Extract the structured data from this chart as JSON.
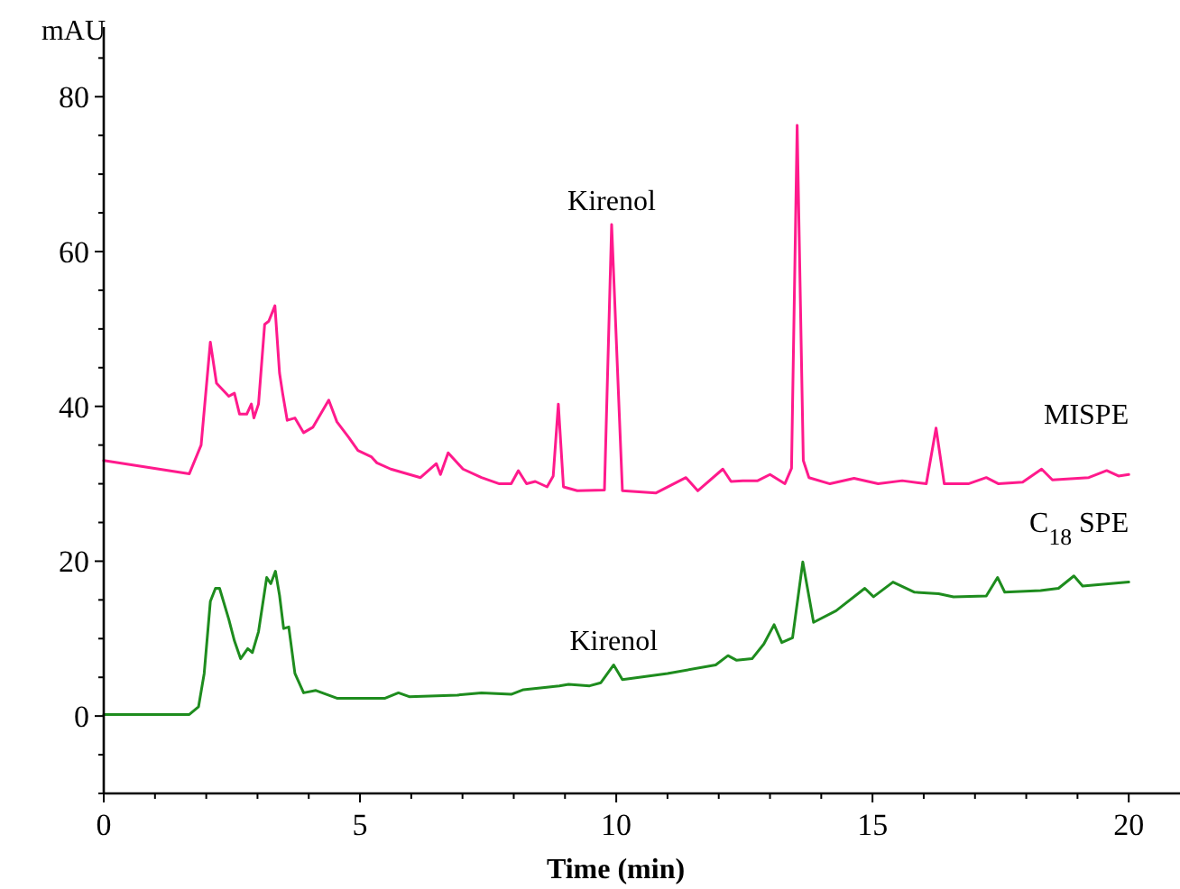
{
  "chart_data": {
    "type": "line",
    "xlabel": "Time (min)",
    "ylabel": "mAU",
    "xlim": [
      0,
      21
    ],
    "ylim": [
      -10,
      89
    ],
    "xticks": [
      0,
      {
        "value": 1,
        "label": null
      },
      {
        "value": 2,
        "label": null
      },
      {
        "value": 3,
        "label": null
      },
      {
        "value": 4,
        "label": null
      },
      5,
      {
        "value": 6,
        "label": null
      },
      {
        "value": 7,
        "label": null
      },
      {
        "value": 8,
        "label": null
      },
      {
        "value": 9,
        "label": null
      },
      10,
      {
        "value": 11,
        "label": null
      },
      {
        "value": 12,
        "label": null
      },
      {
        "value": 13,
        "label": null
      },
      {
        "value": 14,
        "label": null
      },
      15,
      {
        "value": 16,
        "label": null
      },
      {
        "value": 17,
        "label": null
      },
      {
        "value": 18,
        "label": null
      },
      {
        "value": 19,
        "label": null
      },
      20
    ],
    "yticks": [
      {
        "value": -10,
        "label": null
      },
      {
        "value": -5,
        "label": null
      },
      0,
      {
        "value": 5,
        "label": null
      },
      {
        "value": 10,
        "label": null
      },
      {
        "value": 15,
        "label": null
      },
      20,
      {
        "value": 25,
        "label": null
      },
      {
        "value": 30,
        "label": null
      },
      {
        "value": 35,
        "label": null
      },
      40,
      {
        "value": 45,
        "label": null
      },
      {
        "value": 50,
        "label": null
      },
      {
        "value": 55,
        "label": null
      },
      60,
      {
        "value": 65,
        "label": null
      },
      {
        "value": 70,
        "label": null
      },
      {
        "value": 75,
        "label": null
      },
      80,
      {
        "value": 85,
        "label": null
      }
    ],
    "grid": false,
    "marker": "none",
    "line_style": "solid",
    "series": [
      {
        "name": "MISPE",
        "color": "#ff1a8c",
        "x": [
          0,
          1.67,
          1.9,
          2.08,
          2.2,
          2.44,
          2.55,
          2.65,
          2.79,
          2.88,
          2.93,
          3.02,
          3.14,
          3.22,
          3.34,
          3.43,
          3.49,
          3.58,
          3.73,
          3.9,
          4.08,
          4.39,
          4.55,
          4.78,
          4.96,
          5.22,
          5.33,
          5.6,
          6.18,
          6.49,
          6.57,
          6.72,
          7.01,
          7.37,
          7.72,
          7.95,
          8.09,
          8.25,
          8.42,
          8.65,
          8.77,
          8.87,
          8.97,
          9.24,
          9.77,
          9.91,
          10.12,
          10.77,
          11.36,
          11.59,
          12.08,
          12.24,
          12.47,
          12.76,
          13.0,
          13.29,
          13.42,
          13.53,
          13.65,
          13.76,
          14.17,
          14.64,
          15.11,
          15.58,
          16.05,
          16.24,
          16.4,
          16.87,
          17.22,
          17.46,
          17.93,
          18.3,
          18.51,
          19.22,
          19.57,
          19.8,
          20.0
        ],
        "values": [
          33,
          31.3,
          35,
          48.3,
          43,
          41.3,
          41.7,
          39,
          39,
          40.3,
          38.5,
          40.3,
          50.6,
          51,
          53,
          44.3,
          41.7,
          38.2,
          38.5,
          36.6,
          37.3,
          40.8,
          38,
          36,
          34.3,
          33.5,
          32.7,
          31.9,
          30.8,
          32.6,
          31.2,
          34,
          31.9,
          30.8,
          30,
          30,
          31.7,
          30,
          30.3,
          29.6,
          31,
          40.3,
          29.6,
          29.1,
          29.2,
          63.5,
          29.1,
          28.8,
          30.8,
          29.1,
          31.9,
          30.3,
          30.4,
          30.4,
          31.2,
          30,
          32,
          76.3,
          33,
          30.8,
          30,
          30.7,
          30,
          30.4,
          30,
          37.2,
          30,
          30,
          30.8,
          30,
          30.2,
          31.9,
          30.5,
          30.8,
          31.7,
          31,
          31.2
        ]
      },
      {
        "name": "C$_{18}$ SPE",
        "color": "#1e8c1e",
        "x": [
          0,
          1.67,
          1.85,
          1.96,
          2.08,
          2.18,
          2.26,
          2.44,
          2.55,
          2.67,
          2.81,
          2.9,
          3.02,
          3.18,
          3.26,
          3.35,
          3.43,
          3.51,
          3.61,
          3.73,
          3.9,
          4.14,
          4.55,
          5.49,
          5.75,
          5.96,
          6.9,
          7.37,
          7.95,
          8.19,
          8.89,
          9.07,
          9.48,
          9.7,
          9.95,
          10.12,
          11.0,
          11.94,
          12.18,
          12.35,
          12.65,
          12.88,
          13.08,
          13.23,
          13.44,
          13.64,
          13.85,
          14.29,
          14.85,
          15.02,
          15.4,
          15.82,
          16.29,
          16.58,
          17.22,
          17.44,
          17.58,
          18.28,
          18.63,
          18.93,
          19.1,
          20.0
        ],
        "values": [
          0.2,
          0.2,
          1.2,
          5.5,
          14.8,
          16.5,
          16.5,
          12.5,
          9.7,
          7.4,
          8.7,
          8.2,
          10.9,
          17.9,
          17.1,
          18.7,
          15.6,
          11.3,
          11.5,
          5.5,
          3,
          3.3,
          2.3,
          2.3,
          3,
          2.5,
          2.7,
          3,
          2.8,
          3.4,
          3.9,
          4.1,
          3.9,
          4.3,
          6.6,
          4.7,
          5.5,
          6.6,
          7.8,
          7.2,
          7.4,
          9.3,
          11.8,
          9.5,
          10.1,
          19.9,
          12.1,
          13.6,
          16.5,
          15.4,
          17.3,
          16,
          15.8,
          15.4,
          15.5,
          17.9,
          16,
          16.2,
          16.5,
          18.1,
          16.8,
          17.3
        ]
      }
    ],
    "annotations": [
      {
        "text": "Kirenol",
        "x": 9.91,
        "y": 63.5
      },
      {
        "text": "Kirenol",
        "x": 9.95,
        "y": 6.6
      }
    ]
  }
}
